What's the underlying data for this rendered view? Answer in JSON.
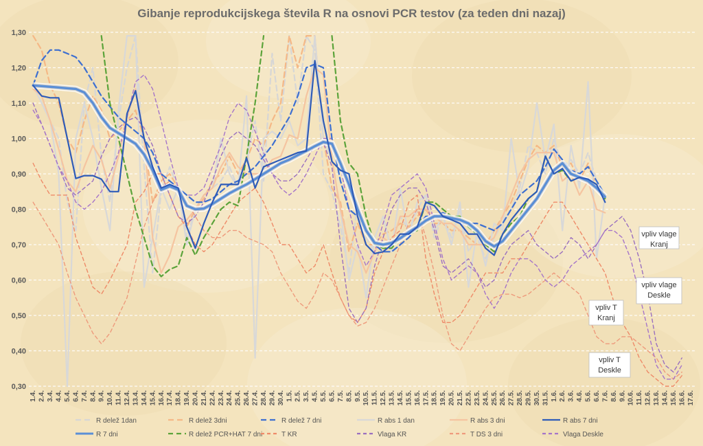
{
  "chart_data": {
    "type": "line",
    "title": "Gibanje reprodukcijskega števila R na osnovi PCR testov (za teden dni nazaj)",
    "xlabel": "",
    "ylabel": "",
    "ylim": [
      0.3,
      1.3
    ],
    "yticks": [
      "0,30",
      "0,40",
      "0,50",
      "0,60",
      "0,70",
      "0,80",
      "0,90",
      "1,00",
      "1,10",
      "1,20",
      "1,30"
    ],
    "grid": true,
    "legend_position": "bottom",
    "categories": [
      "1.4.",
      "2.4.",
      "3.4.",
      "4.4.",
      "5.4.",
      "6.4.",
      "7.4.",
      "8.4.",
      "9.4.",
      "10.4.",
      "11.4.",
      "12.4.",
      "13.4.",
      "14.4.",
      "15.4.",
      "16.4.",
      "17.4.",
      "18.4.",
      "19.4.",
      "20.4.",
      "21.4.",
      "22.4.",
      "23.4.",
      "24.4.",
      "25.4.",
      "26.4.",
      "27.4.",
      "28.4.",
      "29.4.",
      "30.4.",
      "1.5.",
      "2.5.",
      "3.5.",
      "4.5.",
      "5.5.",
      "6.5.",
      "7.5.",
      "8.5.",
      "9.5.",
      "10.5.",
      "11.5.",
      "12.5.",
      "13.5.",
      "14.5.",
      "15.5.",
      "16.5.",
      "17.5.",
      "18.5.",
      "19.5.",
      "20.5.",
      "21.5.",
      "22.5.",
      "23.5.",
      "24.5.",
      "25.5.",
      "26.5.",
      "27.5.",
      "28.5.",
      "29.5.",
      "30.5.",
      "31.5.",
      "1.6.",
      "2.6.",
      "3.6.",
      "4.6.",
      "5.6.",
      "6.6.",
      "7.6.",
      "8.6.",
      "9.6.",
      "10.6.",
      "11.6.",
      "12.6.",
      "13.6.",
      "14.6.",
      "15.6.",
      "16.6.",
      "17.6."
    ],
    "series": [
      {
        "name": "R delež 1dan",
        "color": "#d6d6d6",
        "dash": "8,5",
        "width": 2.2,
        "values": [
          1.15,
          1.12,
          1.05,
          1.0,
          0.82,
          0.74,
          1.1,
          1.2,
          0.95,
          0.82,
          1.05,
          1.2,
          1.29,
          0.92,
          0.62,
          0.85,
          0.92,
          0.86,
          0.72,
          0.8,
          0.84,
          0.86,
          0.88,
          0.92,
          0.86,
          0.94,
          1.05,
          0.88,
          1.24,
          1.05,
          1.29,
          1.1,
          1.29,
          1.25,
          0.9,
          0.85,
          0.75,
          0.62,
          0.82,
          0.72,
          0.68,
          0.72,
          0.7,
          0.78,
          0.74,
          0.8,
          0.84,
          0.72,
          0.78,
          0.72,
          0.8,
          0.68,
          0.72,
          0.66,
          0.72,
          0.76,
          0.8,
          0.86,
          0.98,
          0.96,
          0.9,
          1.0,
          0.92,
          0.94,
          0.9,
          0.96,
          0.88,
          0.84,
          null,
          null,
          null,
          null,
          null,
          null,
          null,
          null,
          null,
          null
        ]
      },
      {
        "name": "R delež 3dni",
        "color": "#f5b886",
        "dash": "8,5",
        "width": 2.2,
        "values": [
          1.29,
          1.25,
          1.15,
          1.1,
          1.0,
          0.96,
          1.05,
          1.12,
          1.08,
          1.0,
          1.02,
          1.05,
          1.08,
          1.0,
          0.82,
          0.88,
          0.9,
          0.86,
          0.75,
          0.8,
          0.83,
          0.88,
          0.9,
          0.95,
          0.9,
          0.94,
          1.0,
          0.98,
          1.05,
          1.1,
          1.29,
          1.2,
          1.29,
          1.29,
          1.0,
          0.86,
          0.82,
          0.68,
          0.76,
          0.7,
          0.7,
          0.73,
          0.74,
          0.76,
          0.75,
          0.78,
          0.8,
          0.76,
          0.76,
          0.74,
          0.74,
          0.72,
          0.7,
          0.7,
          0.74,
          0.78,
          0.82,
          0.88,
          0.94,
          0.98,
          0.96,
          0.98,
          0.92,
          0.93,
          0.88,
          0.93,
          0.86,
          0.84,
          null,
          null,
          null,
          null,
          null,
          null,
          null,
          null,
          null,
          null
        ]
      },
      {
        "name": "R delež 7 dni",
        "color": "#3d6fd0",
        "dash": "8,5",
        "width": 2.2,
        "values": [
          1.15,
          1.22,
          1.25,
          1.25,
          1.24,
          1.23,
          1.2,
          1.16,
          1.12,
          1.09,
          1.06,
          1.04,
          1.02,
          1.0,
          0.96,
          0.9,
          0.88,
          0.86,
          0.84,
          0.82,
          0.82,
          0.83,
          0.85,
          0.87,
          0.88,
          0.9,
          0.92,
          0.95,
          0.98,
          1.02,
          1.06,
          1.12,
          1.2,
          1.21,
          1.2,
          1.0,
          0.88,
          0.8,
          0.78,
          0.74,
          0.7,
          0.68,
          0.68,
          0.7,
          0.72,
          0.75,
          0.78,
          0.78,
          0.79,
          0.78,
          0.76,
          0.76,
          0.76,
          0.75,
          0.74,
          0.76,
          0.8,
          0.84,
          0.86,
          0.88,
          0.92,
          0.97,
          0.94,
          0.91,
          0.9,
          0.92,
          0.88,
          0.84,
          null,
          null,
          null,
          null,
          null,
          null,
          null,
          null,
          null,
          null
        ]
      },
      {
        "name": "R abs 1 dan",
        "color": "#d8d8d8",
        "dash": "",
        "width": 2.2,
        "values": [
          1.15,
          1.1,
          1.05,
          0.9,
          0.3,
          1.0,
          1.1,
          1.0,
          0.86,
          0.74,
          1.08,
          1.29,
          1.29,
          0.58,
          0.72,
          0.86,
          0.8,
          0.86,
          0.7,
          0.8,
          0.84,
          0.86,
          1.0,
          0.9,
          0.86,
          1.12,
          0.38,
          1.0,
          1.02,
          1.0,
          1.05,
          0.98,
          1.0,
          1.29,
          1.0,
          0.94,
          0.8,
          0.6,
          0.7,
          0.55,
          0.72,
          0.78,
          0.68,
          0.86,
          0.72,
          0.82,
          0.84,
          0.74,
          0.78,
          0.7,
          0.82,
          0.58,
          0.74,
          0.64,
          0.76,
          0.74,
          1.0,
          0.84,
          0.92,
          1.1,
          0.94,
          1.04,
          0.74,
          0.98,
          0.86,
          1.16,
          0.66,
          0.84,
          null,
          null,
          null,
          null,
          null,
          null,
          null,
          null,
          null,
          null
        ]
      },
      {
        "name": "R abs 3 dni",
        "color": "#f5c4a0",
        "dash": "",
        "width": 2.2,
        "values": [
          1.14,
          1.12,
          1.05,
          0.97,
          0.88,
          0.85,
          0.92,
          0.98,
          0.94,
          0.86,
          0.95,
          1.06,
          1.14,
          1.0,
          0.72,
          0.62,
          0.67,
          0.75,
          0.77,
          0.8,
          0.84,
          0.86,
          0.92,
          0.96,
          0.92,
          0.9,
          0.9,
          0.9,
          0.94,
          0.95,
          1.01,
          1.0,
          1.12,
          1.2,
          1.18,
          0.94,
          0.8,
          0.7,
          0.68,
          0.62,
          0.68,
          0.72,
          0.7,
          0.78,
          0.78,
          0.8,
          0.8,
          0.78,
          0.76,
          0.76,
          0.74,
          0.7,
          0.7,
          0.7,
          0.72,
          0.78,
          0.84,
          0.9,
          0.94,
          0.96,
          0.96,
          0.96,
          0.88,
          0.9,
          0.84,
          0.88,
          0.8,
          0.79,
          null,
          null,
          null,
          null,
          null,
          null,
          null,
          null,
          null,
          null
        ]
      },
      {
        "name": "R abs 7 dni",
        "color": "#2e5bb8",
        "dash": "",
        "width": 2.2,
        "values": [
          1.15,
          1.12,
          1.115,
          1.115,
          1.0,
          0.887,
          0.895,
          0.895,
          0.885,
          0.85,
          0.85,
          1.07,
          1.135,
          1.0,
          0.92,
          0.86,
          0.87,
          0.86,
          0.75,
          0.69,
          0.76,
          0.82,
          0.87,
          0.87,
          0.87,
          0.945,
          0.86,
          0.92,
          0.93,
          0.94,
          0.95,
          0.96,
          0.965,
          1.22,
          1.05,
          0.935,
          0.91,
          0.9,
          0.78,
          0.7,
          0.675,
          0.68,
          0.7,
          0.73,
          0.73,
          0.75,
          0.82,
          0.81,
          0.78,
          0.77,
          0.76,
          0.73,
          0.73,
          0.69,
          0.67,
          0.73,
          0.77,
          0.8,
          0.83,
          0.85,
          0.95,
          0.9,
          0.915,
          0.88,
          0.89,
          0.885,
          0.87,
          0.82,
          null,
          null,
          null,
          null,
          null,
          null,
          null,
          null,
          null,
          null
        ]
      },
      {
        "name": "R 7 dni",
        "color": "#5b8fd6",
        "dash": "",
        "width": 3.4,
        "values": [
          1.15,
          1.148,
          1.146,
          1.144,
          1.142,
          1.14,
          1.13,
          1.1,
          1.06,
          1.03,
          1.015,
          1.0,
          0.985,
          0.955,
          0.91,
          0.855,
          0.865,
          0.855,
          0.81,
          0.8,
          0.802,
          0.815,
          0.83,
          0.845,
          0.858,
          0.87,
          0.885,
          0.9,
          0.915,
          0.93,
          0.94,
          0.953,
          0.965,
          0.978,
          0.99,
          0.985,
          0.93,
          0.87,
          0.8,
          0.74,
          0.705,
          0.7,
          0.705,
          0.718,
          0.735,
          0.75,
          0.768,
          0.78,
          0.78,
          0.775,
          0.77,
          0.76,
          0.74,
          0.71,
          0.695,
          0.71,
          0.74,
          0.77,
          0.8,
          0.83,
          0.87,
          0.91,
          0.93,
          0.9,
          0.89,
          0.88,
          0.86,
          0.835,
          null,
          null,
          null,
          null,
          null,
          null,
          null,
          null,
          null,
          null
        ]
      },
      {
        "name": "R delež PCR+HAT 7 dni",
        "color": "#5ba33a",
        "dash": "7,5",
        "width": 2.2,
        "values": [
          null,
          null,
          null,
          null,
          null,
          null,
          null,
          null,
          1.29,
          1.1,
          1.0,
          0.9,
          0.8,
          0.72,
          0.64,
          0.61,
          0.63,
          0.64,
          0.72,
          0.67,
          0.72,
          0.76,
          0.8,
          0.82,
          0.81,
          0.95,
          1.1,
          1.29,
          null,
          null,
          null,
          null,
          null,
          null,
          null,
          1.29,
          1.05,
          0.93,
          0.9,
          0.78,
          0.7,
          0.69,
          0.69,
          0.72,
          0.73,
          0.74,
          0.82,
          0.82,
          0.8,
          0.78,
          0.78,
          0.75,
          0.73,
          0.7,
          0.68,
          0.73,
          0.76,
          0.78,
          0.83,
          0.85,
          0.95,
          0.9,
          0.91,
          0.88,
          0.89,
          0.885,
          0.87,
          0.83,
          null,
          null,
          null,
          null,
          null,
          null,
          null,
          null,
          null,
          null
        ]
      },
      {
        "name": "T KR",
        "color": "#ee8a68",
        "dash": "5,4",
        "width": 1.4,
        "values": [
          0.93,
          0.88,
          0.84,
          0.84,
          0.84,
          0.72,
          0.65,
          0.58,
          0.56,
          0.6,
          0.65,
          0.7,
          0.82,
          0.85,
          0.9,
          0.9,
          0.84,
          0.78,
          0.75,
          0.7,
          0.68,
          0.7,
          0.74,
          0.78,
          0.82,
          0.84,
          0.86,
          0.82,
          0.76,
          0.7,
          0.7,
          0.66,
          0.62,
          0.64,
          0.7,
          0.62,
          0.55,
          0.5,
          0.48,
          0.52,
          0.62,
          0.68,
          0.72,
          0.74,
          0.82,
          0.84,
          0.66,
          0.56,
          0.48,
          0.48,
          0.5,
          0.54,
          0.58,
          0.62,
          0.62,
          0.62,
          0.66,
          0.66,
          0.7,
          0.74,
          0.78,
          0.82,
          0.82,
          0.78,
          0.74,
          0.7,
          0.66,
          0.62,
          0.54,
          0.48,
          0.44,
          0.38,
          0.34,
          0.32,
          0.3,
          0.3,
          0.33,
          null
        ]
      },
      {
        "name": "Vlaga KR",
        "color": "#9a6fbf",
        "dash": "5,4",
        "width": 1.4,
        "values": [
          1.1,
          1.04,
          0.98,
          0.92,
          0.86,
          0.84,
          0.86,
          0.88,
          0.95,
          1.0,
          1.03,
          1.05,
          1.06,
          1.03,
          0.98,
          0.9,
          0.84,
          0.78,
          0.76,
          0.78,
          0.82,
          0.88,
          0.95,
          1.0,
          1.02,
          1.0,
          0.98,
          0.94,
          0.9,
          0.88,
          0.88,
          0.9,
          0.94,
          0.98,
          0.99,
          0.92,
          0.7,
          0.52,
          0.48,
          0.52,
          0.64,
          0.72,
          0.8,
          0.84,
          0.86,
          0.86,
          0.82,
          0.74,
          0.64,
          0.62,
          0.64,
          0.66,
          0.62,
          0.58,
          0.6,
          0.66,
          0.7,
          0.72,
          0.74,
          0.7,
          0.68,
          0.66,
          0.68,
          0.72,
          0.7,
          0.66,
          0.7,
          0.74,
          0.76,
          0.78,
          0.74,
          0.66,
          0.56,
          0.42,
          0.36,
          0.34,
          0.38,
          null
        ]
      },
      {
        "name": "T DS 3 dni",
        "color": "#ee9a7c",
        "dash": "5,4",
        "width": 1.4,
        "values": [
          0.82,
          0.78,
          0.74,
          0.7,
          0.62,
          0.55,
          0.5,
          0.45,
          0.42,
          0.45,
          0.5,
          0.55,
          0.65,
          0.75,
          0.82,
          0.86,
          0.88,
          0.86,
          0.82,
          0.78,
          0.74,
          0.72,
          0.72,
          0.74,
          0.74,
          0.72,
          0.71,
          0.7,
          0.68,
          0.62,
          0.58,
          0.54,
          0.52,
          0.56,
          0.62,
          0.6,
          0.55,
          0.5,
          0.47,
          0.48,
          0.52,
          0.58,
          0.64,
          0.7,
          0.76,
          0.8,
          0.72,
          0.62,
          0.5,
          0.42,
          0.4,
          0.44,
          0.48,
          0.52,
          0.55,
          0.56,
          0.56,
          0.55,
          0.56,
          0.58,
          0.6,
          0.62,
          0.6,
          0.58,
          0.56,
          0.5,
          0.44,
          0.42,
          0.42,
          0.44,
          0.44,
          0.42,
          0.4,
          0.38,
          0.34,
          0.32,
          0.34,
          null
        ]
      },
      {
        "name": "Vlaga Deskle",
        "color": "#a574c9",
        "dash": "5,4",
        "width": 1.4,
        "values": [
          1.08,
          1.04,
          0.98,
          0.92,
          0.88,
          0.82,
          0.8,
          0.82,
          0.85,
          0.9,
          0.96,
          1.06,
          1.16,
          1.18,
          1.14,
          1.05,
          0.95,
          0.86,
          0.84,
          0.84,
          0.86,
          0.92,
          0.98,
          1.06,
          1.1,
          1.08,
          1.02,
          0.96,
          0.9,
          0.86,
          0.84,
          0.86,
          0.9,
          0.95,
          1.0,
          1.0,
          0.92,
          0.8,
          0.7,
          0.64,
          0.68,
          0.76,
          0.84,
          0.86,
          0.88,
          0.9,
          0.86,
          0.76,
          0.66,
          0.6,
          0.62,
          0.64,
          0.62,
          0.56,
          0.52,
          0.56,
          0.62,
          0.66,
          0.66,
          0.64,
          0.6,
          0.58,
          0.6,
          0.64,
          0.66,
          0.68,
          0.7,
          0.74,
          0.74,
          0.72,
          0.66,
          0.56,
          0.46,
          0.36,
          0.32,
          0.32,
          0.36,
          null
        ]
      }
    ],
    "annotations": [
      {
        "lines": [
          "vpliv vlage",
          "Kranj"
        ]
      },
      {
        "lines": [
          "vpliv vlage",
          "Deskle"
        ]
      },
      {
        "lines": [
          "vpliv T",
          "Kranj"
        ]
      },
      {
        "lines": [
          "vpliv T",
          "Deskle"
        ]
      }
    ]
  }
}
